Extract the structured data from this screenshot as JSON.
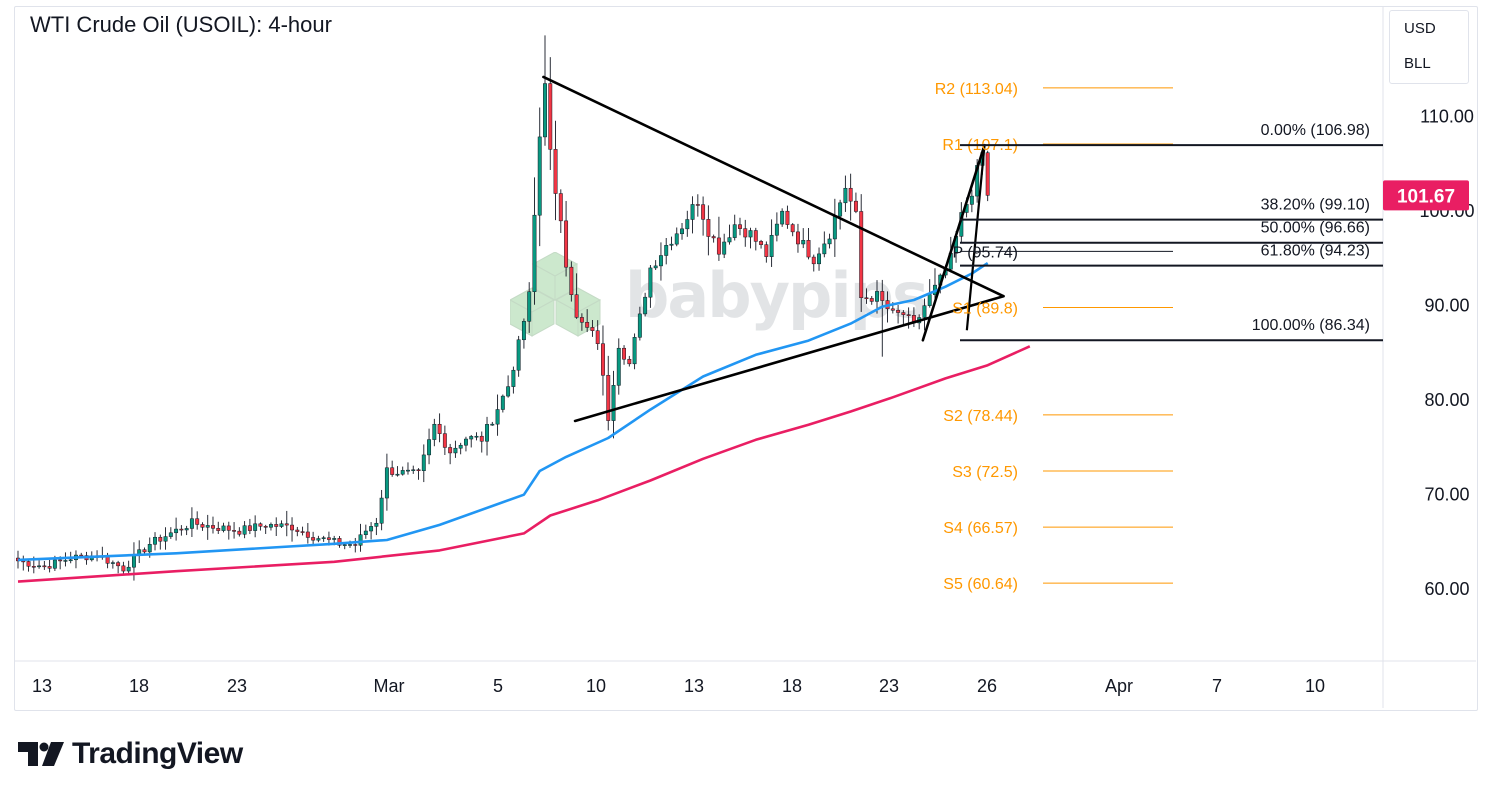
{
  "header": {
    "title": "WTI Crude Oil (USOIL): 4-hour"
  },
  "scale_box": {
    "currency": "USD",
    "unit": "BLL"
  },
  "watermark": "babypips",
  "branding": {
    "name": "TradingView"
  },
  "colors": {
    "up_candle": "#089981",
    "down_candle": "#f23645",
    "ma_fast": "#2196f3",
    "ma_slow": "#e91e63",
    "pivot_levels": "#ff9800",
    "price_badge": "#e91e63",
    "trendlines": "#000000"
  },
  "chart_data": {
    "type": "candlestick",
    "title": "WTI Crude Oil (USOIL): 4-hour",
    "x_ticks": [
      "13",
      "18",
      "23",
      "Mar",
      "5",
      "10",
      "13",
      "18",
      "23",
      "26",
      "Apr",
      "7",
      "10"
    ],
    "y_ticks": [
      "110.00",
      "100.00",
      "90.00",
      "80.00",
      "70.00",
      "60.00"
    ],
    "y_range": [
      52.4,
      121.6
    ],
    "last_price": "101.67",
    "grid": false,
    "pivot_levels": [
      {
        "label": "R2 (113.04)",
        "value": 113.04
      },
      {
        "label": "R1 (107.1)",
        "value": 107.1
      },
      {
        "label": "P (95.74)",
        "value": 95.74
      },
      {
        "label": "S1 (89.8)",
        "value": 89.8
      },
      {
        "label": "S2 (78.44)",
        "value": 78.44
      },
      {
        "label": "S3 (72.5)",
        "value": 72.5
      },
      {
        "label": "S4 (66.57)",
        "value": 66.57
      },
      {
        "label": "S5 (60.64)",
        "value": 60.64
      }
    ],
    "fibonacci_levels": [
      {
        "label": "0.00% (106.98)",
        "value": 106.98
      },
      {
        "label": "38.20% (99.10)",
        "value": 99.1
      },
      {
        "label": "50.00% (96.66)",
        "value": 96.66
      },
      {
        "label": "61.80% (94.23)",
        "value": 94.23
      },
      {
        "label": "100.00% (86.34)",
        "value": 86.34
      }
    ],
    "price_path": [
      [
        0,
        63.0
      ],
      [
        5,
        62.4
      ],
      [
        10,
        63.3
      ],
      [
        15,
        63.6
      ],
      [
        20,
        62.2
      ],
      [
        25,
        64.8
      ],
      [
        30,
        66.2
      ],
      [
        33,
        67.0
      ],
      [
        37,
        66.6
      ],
      [
        42,
        66.2
      ],
      [
        47,
        66.8
      ],
      [
        52,
        66.6
      ],
      [
        56,
        65.6
      ],
      [
        61,
        64.8
      ],
      [
        64,
        64.7
      ],
      [
        66,
        66.2
      ],
      [
        68,
        67.2
      ],
      [
        70,
        72.6
      ],
      [
        73,
        72.3
      ],
      [
        76,
        72.1
      ],
      [
        79,
        77.3
      ],
      [
        82,
        74.6
      ],
      [
        85,
        76.0
      ],
      [
        88,
        75.9
      ],
      [
        90,
        78.0
      ],
      [
        93,
        81.5
      ],
      [
        95,
        85.8
      ],
      [
        97,
        91.0
      ],
      [
        99,
        107.9
      ],
      [
        100,
        114.1
      ],
      [
        101,
        106.1
      ],
      [
        102,
        101.3
      ],
      [
        103,
        99.3
      ],
      [
        104,
        94.7
      ],
      [
        106,
        88.5
      ],
      [
        108,
        87.5
      ],
      [
        110,
        86.3
      ],
      [
        112,
        78.2
      ],
      [
        114,
        86.0
      ],
      [
        116,
        83.8
      ],
      [
        118,
        88.7
      ],
      [
        120,
        94.0
      ],
      [
        123,
        96.4
      ],
      [
        126,
        98.5
      ],
      [
        129,
        101.2
      ],
      [
        131,
        98.0
      ],
      [
        133,
        96.0
      ],
      [
        136,
        98.6
      ],
      [
        139,
        97.6
      ],
      [
        142,
        95.4
      ],
      [
        145,
        99.8
      ],
      [
        148,
        97.1
      ],
      [
        151,
        95.0
      ],
      [
        154,
        97.7
      ],
      [
        157,
        102.6
      ],
      [
        159,
        99.4
      ],
      [
        160,
        90.8
      ],
      [
        163,
        91.0
      ],
      [
        166,
        89.0
      ],
      [
        168,
        89.1
      ],
      [
        170,
        87.7
      ],
      [
        172,
        90.0
      ],
      [
        175,
        92.7
      ],
      [
        177,
        94.9
      ],
      [
        179,
        99.4
      ],
      [
        181,
        102.2
      ],
      [
        183,
        106.1
      ],
      [
        184,
        102.4
      ]
    ],
    "candle_slots": 185,
    "moving_average_fast": [
      [
        0,
        63.1
      ],
      [
        30,
        63.8
      ],
      [
        60,
        64.8
      ],
      [
        70,
        65.2
      ],
      [
        80,
        66.8
      ],
      [
        90,
        68.8
      ],
      [
        96,
        70.0
      ],
      [
        99,
        72.5
      ],
      [
        104,
        74.0
      ],
      [
        112,
        76.0
      ],
      [
        120,
        79.0
      ],
      [
        130,
        82.5
      ],
      [
        140,
        84.8
      ],
      [
        150,
        86.3
      ],
      [
        158,
        88.1
      ],
      [
        164,
        89.9
      ],
      [
        170,
        90.6
      ],
      [
        176,
        92.0
      ],
      [
        181,
        93.4
      ],
      [
        184,
        94.5
      ]
    ],
    "moving_average_slow": [
      [
        0,
        60.8
      ],
      [
        30,
        61.9
      ],
      [
        60,
        62.9
      ],
      [
        80,
        64.1
      ],
      [
        96,
        65.9
      ],
      [
        101,
        67.8
      ],
      [
        110,
        69.4
      ],
      [
        120,
        71.5
      ],
      [
        130,
        73.8
      ],
      [
        140,
        75.8
      ],
      [
        150,
        77.4
      ],
      [
        158,
        78.8
      ],
      [
        166,
        80.3
      ],
      [
        176,
        82.3
      ],
      [
        184,
        83.7
      ],
      [
        192,
        85.7
      ]
    ],
    "trendlines": [
      {
        "name": "upper",
        "from": [
          99.7,
          114.2
        ],
        "to": [
          187.0,
          91.0
        ]
      },
      {
        "name": "lower",
        "from": [
          105.7,
          77.8
        ],
        "to": [
          187.0,
          91.0
        ]
      },
      {
        "name": "channel",
        "from": [
          171.7,
          86.34
        ],
        "to": [
          183.4,
          106.98
        ]
      }
    ]
  }
}
